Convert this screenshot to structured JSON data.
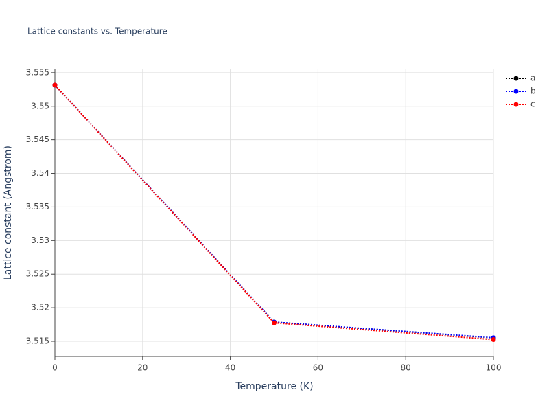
{
  "chart_data": {
    "type": "line",
    "title": "Lattice constants vs. Temperature",
    "x_label": "Temperature (K)",
    "y_label": "Lattice constant (Angstrom)",
    "x": [
      0,
      50,
      100
    ],
    "series": [
      {
        "name": "a",
        "color": "#000000",
        "values": [
          3.55316,
          3.51786,
          3.51551
        ]
      },
      {
        "name": "b",
        "color": "#0000ff",
        "values": [
          3.55316,
          3.51786,
          3.51553
        ]
      },
      {
        "name": "c",
        "color": "#ff0000",
        "values": [
          3.55316,
          3.51775,
          3.51525
        ]
      }
    ],
    "xlim": [
      0,
      100
    ],
    "xticks": [
      0,
      20,
      40,
      60,
      80,
      100
    ],
    "ylim": [
      3.51275,
      3.5556
    ],
    "yticks": [
      3.515,
      3.52,
      3.525,
      3.53,
      3.535,
      3.54,
      3.545,
      3.55,
      3.555
    ],
    "grid": true,
    "legend": "right"
  }
}
